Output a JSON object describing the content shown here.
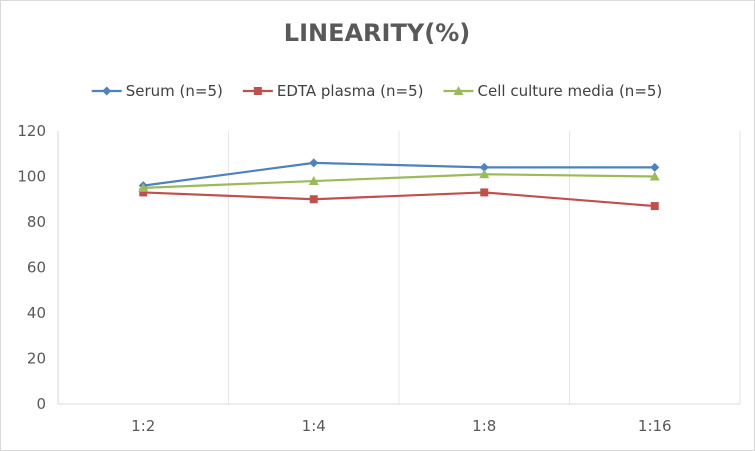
{
  "chart_data": {
    "type": "line",
    "title": "LINEARITY(%)",
    "categories": [
      "1:2",
      "1:4",
      "1:8",
      "1:16"
    ],
    "yticks": [
      "0",
      "20",
      "40",
      "60",
      "80",
      "100",
      "120"
    ],
    "ylim": [
      0,
      120
    ],
    "grid": "vertical",
    "legend": "top",
    "series": [
      {
        "name": "Serum (n=5)",
        "values": [
          96,
          106,
          104,
          104
        ],
        "color": "#4f81bd",
        "marker": "diamond"
      },
      {
        "name": "EDTA plasma (n=5)",
        "values": [
          93,
          90,
          93,
          87
        ],
        "color": "#c0504d",
        "marker": "square"
      },
      {
        "name": "Cell culture media (n=5)",
        "values": [
          95,
          98,
          101,
          100
        ],
        "color": "#9bbb59",
        "marker": "triangle"
      }
    ]
  }
}
